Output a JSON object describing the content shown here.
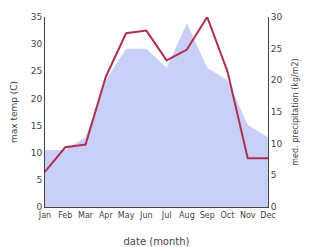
{
  "chart_data": {
    "type": "line",
    "categories": [
      "Jan",
      "Feb",
      "Mar",
      "Apr",
      "May",
      "Jun",
      "Jul",
      "Aug",
      "Sep",
      "Oct",
      "Nov",
      "Dec"
    ],
    "series": [
      {
        "type": "area",
        "color": "#c8d0f8",
        "axis": "y2",
        "values": [
          9,
          9,
          11,
          20,
          25,
          25,
          22,
          29,
          22,
          20,
          13,
          11
        ]
      },
      {
        "type": "line",
        "color": "#b03050",
        "values": [
          6.5,
          11.0,
          11.5,
          24.0,
          32.0,
          32.5,
          27.0,
          29.0,
          35.0,
          25.0,
          9.0,
          9.0
        ]
      }
    ],
    "xlabel": "date (month)",
    "ylabel": "max temp (C)",
    "y2label": "med. precipitation (kg/m2)",
    "ylim": [
      0,
      35
    ],
    "yticks": [
      0,
      5,
      10,
      15,
      20,
      25,
      30,
      35
    ],
    "y2lim": [
      0,
      30
    ],
    "y2ticks": [
      0,
      5,
      10,
      15,
      20,
      25,
      30
    ],
    "grid": false
  }
}
